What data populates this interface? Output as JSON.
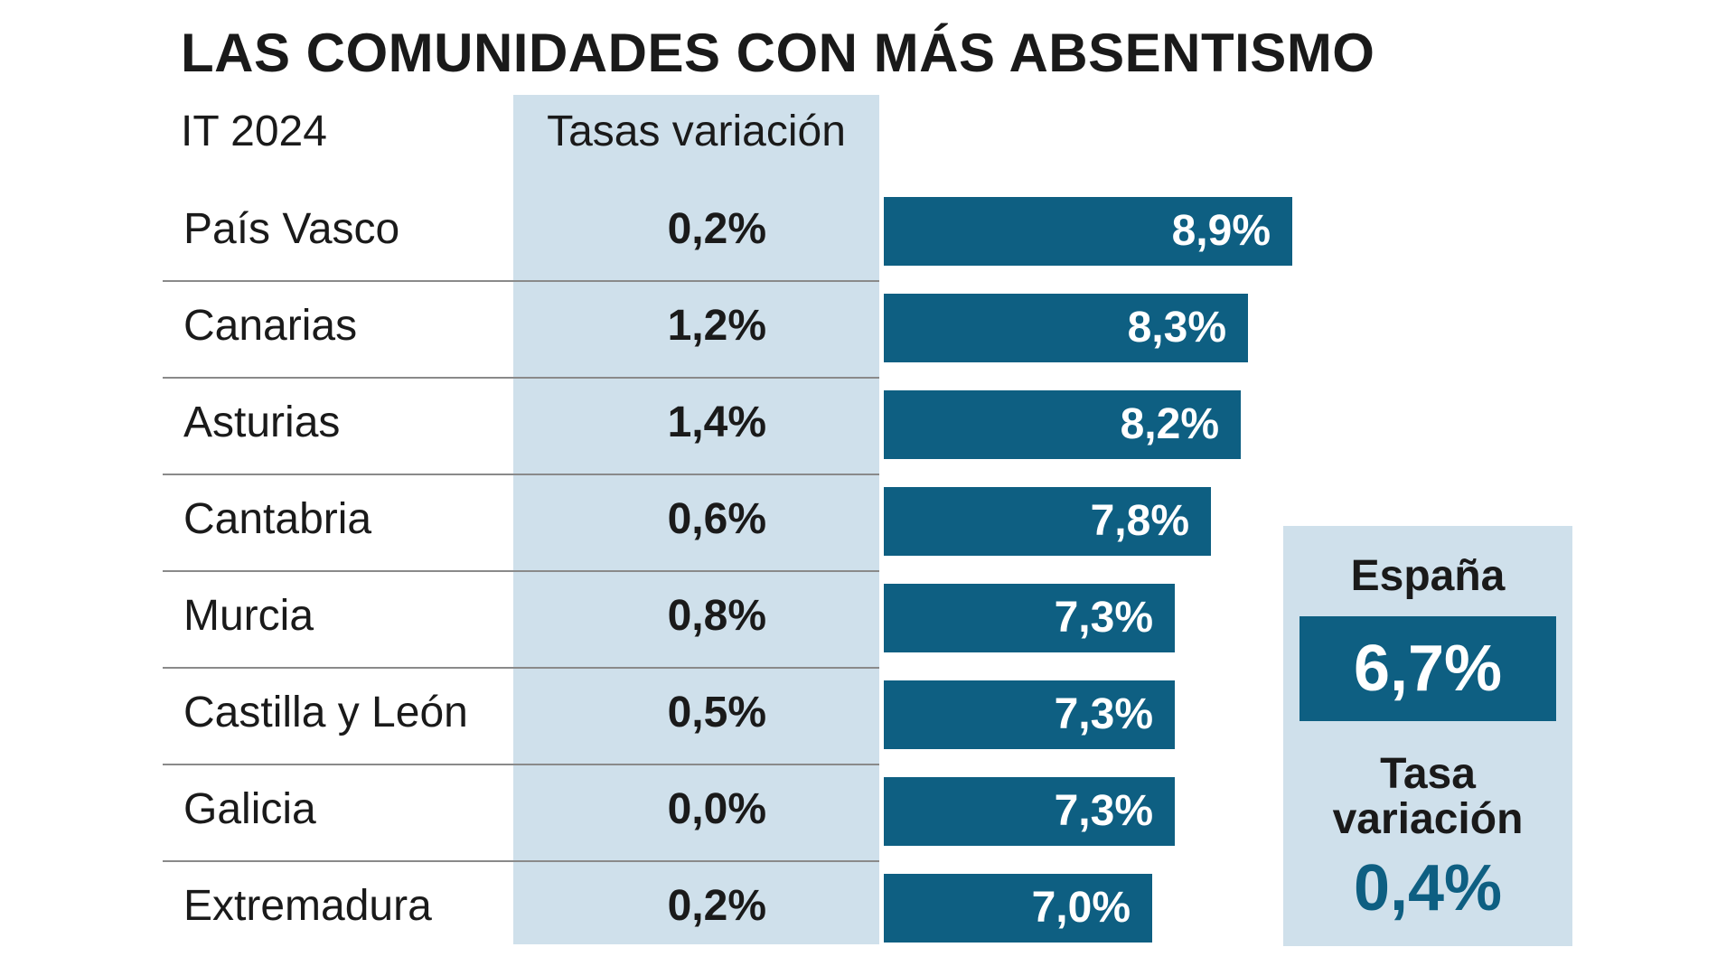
{
  "chart_data": {
    "type": "bar",
    "title": "LAS COMUNIDADES CON MÁS ABSENTISMO",
    "subtitle": "IT 2024",
    "variation_header": "Tasas variación",
    "categories": [
      "País Vasco",
      "Canarias",
      "Asturias",
      "Cantabria",
      "Murcia",
      "Castilla y León",
      "Galicia",
      "Extremadura"
    ],
    "series": [
      {
        "name": "IT 2024",
        "values": [
          8.9,
          8.3,
          8.2,
          7.8,
          7.3,
          7.3,
          7.3,
          7.0
        ],
        "labels": [
          "8,9%",
          "8,3%",
          "8,2%",
          "7,8%",
          "7,3%",
          "7,3%",
          "7,3%",
          "7,0%"
        ]
      },
      {
        "name": "Tasas variación",
        "values": [
          0.2,
          1.2,
          1.4,
          0.6,
          0.8,
          0.5,
          0.0,
          0.2
        ],
        "labels": [
          "0,2%",
          "1,2%",
          "1,4%",
          "0,6%",
          "0,8%",
          "0,5%",
          "0,0%",
          "0,2%"
        ]
      }
    ],
    "orientation": "horizontal"
  },
  "summary": {
    "title": "España",
    "value": "6,7%",
    "variation_label": "Tasa variación",
    "variation_value": "0,4%"
  },
  "colors": {
    "bar": "#0e5f82",
    "panel": "#cfe0eb",
    "text": "#1a1a1a"
  }
}
